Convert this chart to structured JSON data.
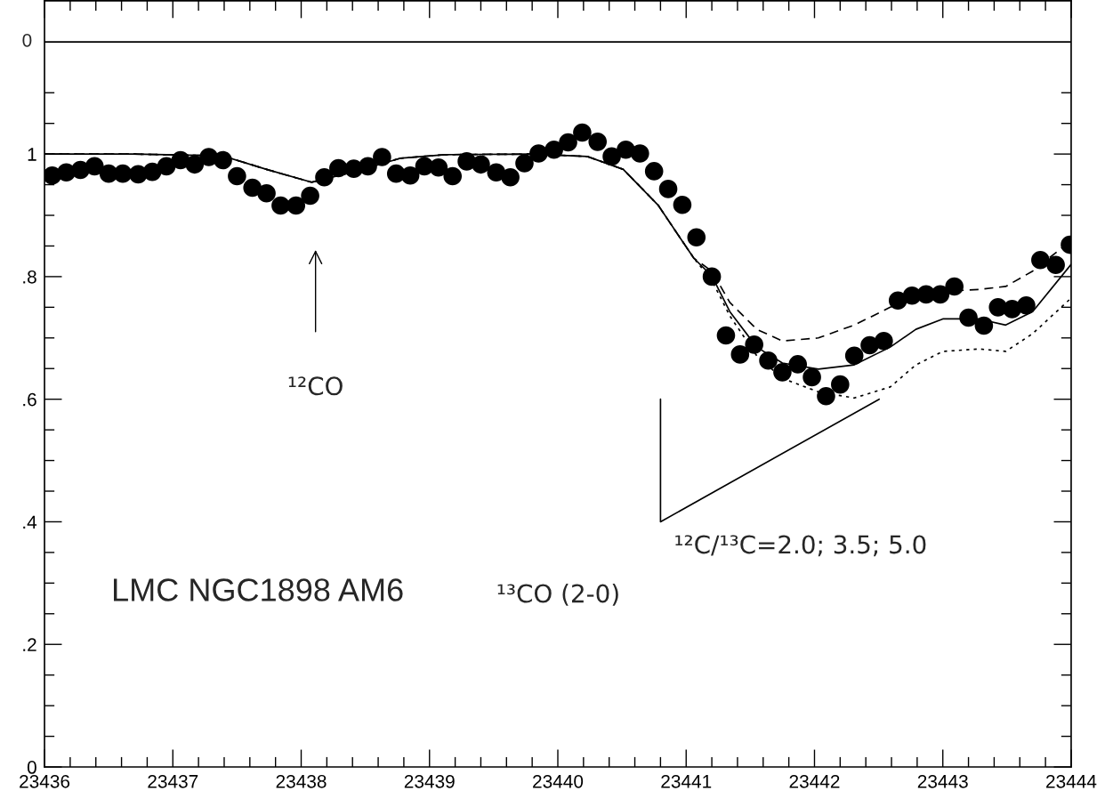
{
  "chart_data": {
    "type": "scatter",
    "xlim": [
      23436,
      23444
    ],
    "ylim": [
      0,
      1.25
    ],
    "xticks": [
      23436,
      {
        "value": 23436.2,
        "label": null
      },
      {
        "value": 23436.4,
        "label": null
      },
      {
        "value": 23436.6,
        "label": null
      },
      {
        "value": 23436.8,
        "label": null
      },
      23437,
      {
        "value": 23437.2,
        "label": null
      },
      {
        "value": 23437.4,
        "label": null
      },
      {
        "value": 23437.6,
        "label": null
      },
      {
        "value": 23437.8,
        "label": null
      },
      23438,
      {
        "value": 23438.2,
        "label": null
      },
      {
        "value": 23438.4,
        "label": null
      },
      {
        "value": 23438.6,
        "label": null
      },
      {
        "value": 23438.8,
        "label": null
      },
      23439,
      {
        "value": 23439.2,
        "label": null
      },
      {
        "value": 23439.4,
        "label": null
      },
      {
        "value": 23439.6,
        "label": null
      },
      {
        "value": 23439.8,
        "label": null
      },
      23440,
      {
        "value": 23440.2,
        "label": null
      },
      {
        "value": 23440.4,
        "label": null
      },
      {
        "value": 23440.6,
        "label": null
      },
      {
        "value": 23440.8,
        "label": null
      },
      23441,
      {
        "value": 23441.2,
        "label": null
      },
      {
        "value": 23441.4,
        "label": null
      },
      {
        "value": 23441.6,
        "label": null
      },
      {
        "value": 23441.8,
        "label": null
      },
      23442,
      {
        "value": 23442.2,
        "label": null
      },
      {
        "value": 23442.4,
        "label": null
      },
      {
        "value": 23442.6,
        "label": null
      },
      {
        "value": 23442.8,
        "label": null
      },
      23443,
      {
        "value": 23443.2,
        "label": null
      },
      {
        "value": 23443.4,
        "label": null
      },
      {
        "value": 23443.6,
        "label": null
      },
      {
        "value": 23443.8,
        "label": null
      },
      23444
    ],
    "yticks": [
      0,
      {
        "value": 0.05,
        "label": null
      },
      {
        "value": 0.1,
        "label": null
      },
      {
        "value": 0.15,
        "label": null
      },
      {
        "value": 0.2,
        "label": ".2"
      },
      {
        "value": 0.25,
        "label": null
      },
      {
        "value": 0.3,
        "label": null
      },
      {
        "value": 0.35,
        "label": null
      },
      {
        "value": 0.4,
        "label": ".4"
      },
      {
        "value": 0.45,
        "label": null
      },
      {
        "value": 0.5,
        "label": null
      },
      {
        "value": 0.55,
        "label": null
      },
      {
        "value": 0.6,
        "label": ".6"
      },
      {
        "value": 0.65,
        "label": null
      },
      {
        "value": 0.7,
        "label": null
      },
      {
        "value": 0.75,
        "label": null
      },
      {
        "value": 0.8,
        "label": ".8"
      },
      {
        "value": 0.85,
        "label": null
      },
      {
        "value": 0.9,
        "label": null
      },
      {
        "value": 0.95,
        "label": null
      },
      1,
      {
        "value": 1.05,
        "label": null
      },
      {
        "value": 1.1,
        "label": null
      }
    ],
    "ref_lines": [
      {
        "axis": "y",
        "value": 1.183,
        "color": "#000000",
        "line_style": "solid"
      }
    ],
    "grid": false,
    "legend": false,
    "series": [
      {
        "color": "#000000",
        "marker": "circle",
        "x": [
          23436.06,
          23436.17,
          23436.28,
          23436.39,
          23436.5,
          23436.61,
          23436.73,
          23436.84,
          23436.95,
          23437.06,
          23437.17,
          23437.28,
          23437.39,
          23437.5,
          23437.62,
          23437.73,
          23437.84,
          23437.96,
          23438.07,
          23438.18,
          23438.29,
          23438.41,
          23438.52,
          23438.63,
          23438.74,
          23438.85,
          23438.96,
          23439.07,
          23439.18,
          23439.29,
          23439.4,
          23439.52,
          23439.63,
          23439.74,
          23439.85,
          23439.97,
          23440.08,
          23440.19,
          23440.31,
          23440.42,
          23440.53,
          23440.64,
          23440.75,
          23440.86,
          23440.97,
          23441.08,
          23441.2,
          23441.31,
          23441.42,
          23441.53,
          23441.64,
          23441.75,
          23441.87,
          23441.98,
          23442.09,
          23442.2,
          23442.31,
          23442.43,
          23442.54,
          23442.65,
          23442.76,
          23442.87,
          23442.98,
          23443.09,
          23443.2,
          23443.32,
          23443.43,
          23443.54,
          23443.65,
          23443.76,
          23443.88,
          23443.99
        ],
        "values": [
          0.965,
          0.97,
          0.974,
          0.98,
          0.968,
          0.968,
          0.967,
          0.971,
          0.98,
          0.99,
          0.983,
          0.995,
          0.99,
          0.964,
          0.945,
          0.936,
          0.916,
          0.916,
          0.932,
          0.962,
          0.977,
          0.976,
          0.98,
          0.995,
          0.968,
          0.965,
          0.98,
          0.978,
          0.964,
          0.988,
          0.983,
          0.97,
          0.962,
          0.985,
          1.001,
          1.007,
          1.019,
          1.035,
          1.02,
          0.996,
          1.007,
          1.001,
          0.972,
          0.943,
          0.917,
          0.864,
          0.8,
          0.704,
          0.673,
          0.689,
          0.663,
          0.644,
          0.657,
          0.636,
          0.605,
          0.624,
          0.671,
          0.688,
          0.695,
          0.761,
          0.769,
          0.771,
          0.771,
          0.784,
          0.733,
          0.72,
          0.75,
          0.747,
          0.753,
          0.827,
          0.819,
          0.852
        ]
      },
      {
        "type": "line",
        "color": "#000000",
        "line_style": "solid",
        "x": [
          23436,
          23436.69,
          23437.39,
          23437.73,
          23438.08,
          23438.43,
          23438.77,
          23439.12,
          23439.81,
          23440.23,
          23440.51,
          23440.78,
          23441.06,
          23441.2,
          23441.34,
          23441.55,
          23441.75,
          23442.03,
          23442.31,
          23442.59,
          23442.79,
          23443,
          23443.28,
          23443.49,
          23443.7,
          23444
        ],
        "values": [
          1.0,
          1.0,
          0.997,
          0.975,
          0.954,
          0.972,
          0.993,
          0.999,
          1.0,
          0.996,
          0.975,
          0.917,
          0.83,
          0.801,
          0.743,
          0.685,
          0.659,
          0.649,
          0.656,
          0.685,
          0.714,
          0.731,
          0.731,
          0.721,
          0.743,
          0.82
        ]
      },
      {
        "type": "line",
        "color": "#000000",
        "line_style": "dashed",
        "x": [
          23436,
          23436.69,
          23437.39,
          23437.73,
          23438.08,
          23438.43,
          23438.77,
          23439.12,
          23439.81,
          23440.23,
          23440.51,
          23440.78,
          23441.06,
          23441.2,
          23441.34,
          23441.55,
          23441.75,
          23442.03,
          23442.31,
          23442.59,
          23442.79,
          23443,
          23443.28,
          23443.49,
          23443.7,
          23444
        ],
        "values": [
          1.0,
          1.0,
          0.997,
          0.975,
          0.954,
          0.972,
          0.993,
          0.999,
          1.0,
          0.996,
          0.975,
          0.917,
          0.83,
          0.809,
          0.758,
          0.714,
          0.695,
          0.7,
          0.721,
          0.75,
          0.768,
          0.776,
          0.779,
          0.784,
          0.809,
          0.859
        ]
      },
      {
        "type": "line",
        "color": "#000000",
        "line_style": "dotted",
        "x": [
          23436,
          23436.69,
          23437.39,
          23437.73,
          23438.08,
          23438.43,
          23438.77,
          23439.12,
          23439.81,
          23440.23,
          23440.51,
          23440.78,
          23441.06,
          23441.2,
          23441.34,
          23441.55,
          23441.75,
          23442.03,
          23442.31,
          23442.59,
          23442.79,
          23443,
          23443.28,
          23443.49,
          23443.7,
          23444
        ],
        "values": [
          1.0,
          1.0,
          0.997,
          0.975,
          0.954,
          0.972,
          0.993,
          0.999,
          1.0,
          0.996,
          0.975,
          0.917,
          0.83,
          0.794,
          0.736,
          0.671,
          0.634,
          0.612,
          0.602,
          0.62,
          0.656,
          0.678,
          0.682,
          0.678,
          0.707,
          0.765
        ]
      }
    ],
    "annotations": [
      "0",
      "¹²CO",
      "¹²C/¹³C=2.0; 3.5; 5.0",
      "¹³CO (2-0)",
      "LMC NGC1898 AM6"
    ]
  }
}
